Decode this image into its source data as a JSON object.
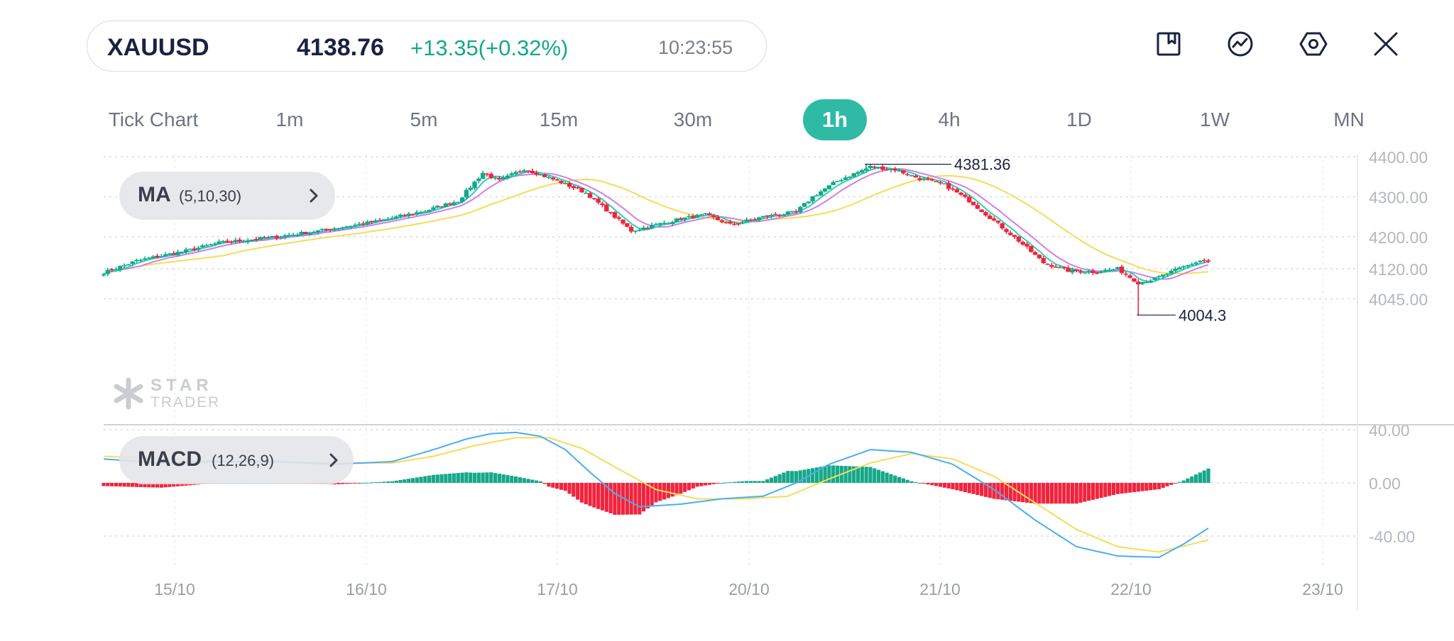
{
  "quote": {
    "symbol": "XAUUSD",
    "price": "4138.76",
    "change": "+13.35(+0.32%)",
    "time": "10:23:55"
  },
  "toolbar": {
    "icons": [
      "bookmark-icon",
      "chart-trend-icon",
      "settings-hexagon-icon",
      "close-icon"
    ]
  },
  "timeframes": [
    {
      "label": "Tick Chart",
      "active": false
    },
    {
      "label": "1m",
      "active": false
    },
    {
      "label": "5m",
      "active": false
    },
    {
      "label": "15m",
      "active": false
    },
    {
      "label": "30m",
      "active": false
    },
    {
      "label": "1h",
      "active": true
    },
    {
      "label": "4h",
      "active": false
    },
    {
      "label": "1D",
      "active": false
    },
    {
      "label": "1W",
      "active": false
    },
    {
      "label": "MN",
      "active": false
    }
  ],
  "indicators": {
    "ma": {
      "name": "MA",
      "params": "(5,10,30)"
    },
    "macd": {
      "name": "MACD",
      "params": "(12,26,9)"
    }
  },
  "watermark": {
    "line1": "STAR",
    "line2": "TRADER"
  },
  "colors": {
    "up": "#16a889",
    "down": "#f0243e",
    "accent": "#2ebaa4",
    "ma_fast": "#2bd1b6",
    "ma_mid": "#d17ee8",
    "ma_slow": "#f5dc5a",
    "macd_line": "#4aaef0",
    "signal_line": "#f5dc5a"
  },
  "chart_data": [
    {
      "type": "candlestick",
      "timeframe": "1h",
      "x_tick_labels": [
        "15/10",
        "16/10",
        "17/10",
        "20/10",
        "21/10",
        "22/10",
        "23/10"
      ],
      "y_tick_labels": [
        "4400.00",
        "4300.00",
        "4200.00",
        "4120.00",
        "4045.00"
      ],
      "ylim": [
        3980,
        4402
      ],
      "annotations": [
        {
          "label": "4381.36",
          "value": 4381.36,
          "kind": "high"
        },
        {
          "label": "4004.3",
          "value": 4004.3,
          "kind": "low"
        }
      ],
      "key_points": [
        {
          "t": 0,
          "v": 4110
        },
        {
          "t": 8,
          "v": 4140
        },
        {
          "t": 20,
          "v": 4165
        },
        {
          "t": 28,
          "v": 4185
        },
        {
          "t": 42,
          "v": 4200
        },
        {
          "t": 52,
          "v": 4215
        },
        {
          "t": 66,
          "v": 4238
        },
        {
          "t": 78,
          "v": 4265
        },
        {
          "t": 86,
          "v": 4290
        },
        {
          "t": 92,
          "v": 4360
        },
        {
          "t": 96,
          "v": 4340
        },
        {
          "t": 102,
          "v": 4370
        },
        {
          "t": 110,
          "v": 4340
        },
        {
          "t": 117,
          "v": 4310
        },
        {
          "t": 124,
          "v": 4250
        },
        {
          "t": 128,
          "v": 4215
        },
        {
          "t": 134,
          "v": 4230
        },
        {
          "t": 140,
          "v": 4245
        },
        {
          "t": 146,
          "v": 4255
        },
        {
          "t": 152,
          "v": 4230
        },
        {
          "t": 160,
          "v": 4250
        },
        {
          "t": 168,
          "v": 4262
        },
        {
          "t": 172,
          "v": 4300
        },
        {
          "t": 178,
          "v": 4340
        },
        {
          "t": 186,
          "v": 4375
        },
        {
          "t": 192,
          "v": 4368
        },
        {
          "t": 198,
          "v": 4345
        },
        {
          "t": 204,
          "v": 4330
        },
        {
          "t": 210,
          "v": 4290
        },
        {
          "t": 216,
          "v": 4240
        },
        {
          "t": 222,
          "v": 4190
        },
        {
          "t": 228,
          "v": 4135
        },
        {
          "t": 234,
          "v": 4115
        },
        {
          "t": 240,
          "v": 4112
        },
        {
          "t": 246,
          "v": 4120
        },
        {
          "t": 251,
          "v": 4085
        },
        {
          "t": 255,
          "v": 4095
        },
        {
          "t": 262,
          "v": 4125
        },
        {
          "t": 266,
          "v": 4140
        },
        {
          "t": 268,
          "v": 4138.76
        }
      ]
    },
    {
      "type": "macd",
      "params": "(12,26,9)",
      "y_tick_labels": [
        "40.00",
        "0.00",
        "-40.00"
      ],
      "ylim": [
        -63,
        40
      ],
      "macd_line": [
        {
          "t": 0,
          "v": 18
        },
        {
          "t": 14,
          "v": 15
        },
        {
          "t": 28,
          "v": 16
        },
        {
          "t": 42,
          "v": 16
        },
        {
          "t": 56,
          "v": 14
        },
        {
          "t": 70,
          "v": 16
        },
        {
          "t": 80,
          "v": 25
        },
        {
          "t": 88,
          "v": 33
        },
        {
          "t": 94,
          "v": 37
        },
        {
          "t": 100,
          "v": 38
        },
        {
          "t": 106,
          "v": 35
        },
        {
          "t": 112,
          "v": 25
        },
        {
          "t": 118,
          "v": 8
        },
        {
          "t": 124,
          "v": -8
        },
        {
          "t": 130,
          "v": -18
        },
        {
          "t": 140,
          "v": -16
        },
        {
          "t": 150,
          "v": -12
        },
        {
          "t": 160,
          "v": -10
        },
        {
          "t": 168,
          "v": 0
        },
        {
          "t": 176,
          "v": 14
        },
        {
          "t": 186,
          "v": 25
        },
        {
          "t": 196,
          "v": 23
        },
        {
          "t": 206,
          "v": 14
        },
        {
          "t": 216,
          "v": -5
        },
        {
          "t": 226,
          "v": -28
        },
        {
          "t": 236,
          "v": -48
        },
        {
          "t": 246,
          "v": -55
        },
        {
          "t": 256,
          "v": -56
        },
        {
          "t": 262,
          "v": -46
        },
        {
          "t": 268,
          "v": -34
        }
      ],
      "signal_line": [
        {
          "t": 0,
          "v": 20
        },
        {
          "t": 14,
          "v": 18
        },
        {
          "t": 28,
          "v": 16
        },
        {
          "t": 42,
          "v": 16
        },
        {
          "t": 56,
          "v": 15
        },
        {
          "t": 70,
          "v": 15
        },
        {
          "t": 80,
          "v": 20
        },
        {
          "t": 90,
          "v": 28
        },
        {
          "t": 100,
          "v": 34
        },
        {
          "t": 108,
          "v": 34
        },
        {
          "t": 116,
          "v": 26
        },
        {
          "t": 124,
          "v": 12
        },
        {
          "t": 134,
          "v": -5
        },
        {
          "t": 144,
          "v": -12
        },
        {
          "t": 156,
          "v": -12
        },
        {
          "t": 166,
          "v": -10
        },
        {
          "t": 176,
          "v": 3
        },
        {
          "t": 186,
          "v": 15
        },
        {
          "t": 196,
          "v": 22
        },
        {
          "t": 206,
          "v": 18
        },
        {
          "t": 216,
          "v": 5
        },
        {
          "t": 226,
          "v": -15
        },
        {
          "t": 236,
          "v": -35
        },
        {
          "t": 246,
          "v": -48
        },
        {
          "t": 256,
          "v": -52
        },
        {
          "t": 268,
          "v": -43
        }
      ]
    }
  ]
}
